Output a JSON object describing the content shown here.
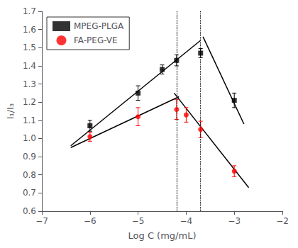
{
  "chart_data": {
    "type": "scatter",
    "x_label": "Log C (mg/mL)",
    "y_label": "I₁/I₃",
    "series": [
      {
        "name": "MPEG-PLGA",
        "type": "scatter",
        "color": "black",
        "marker": "square",
        "x": [
          -6.0,
          -5.0,
          -4.5,
          -4.2,
          -3.7,
          -3.0
        ],
        "values": [
          1.07,
          1.25,
          1.38,
          1.43,
          1.47,
          1.21
        ],
        "yerr": [
          0.03,
          0.04,
          0.025,
          0.03,
          0.025,
          0.04
        ]
      },
      {
        "name": "FA-PEG-VE",
        "type": "scatter",
        "color": "red",
        "marker": "circle",
        "x": [
          -6.0,
          -5.0,
          -4.2,
          -4.0,
          -3.7,
          -3.0
        ],
        "values": [
          1.01,
          1.12,
          1.16,
          1.13,
          1.05,
          0.82
        ],
        "yerr": [
          0.025,
          0.05,
          0.055,
          0.04,
          0.045,
          0.03
        ]
      },
      {
        "type": "line",
        "color": "black",
        "line_style": "solid",
        "x": [
          -6.4,
          -3.7
        ],
        "values": [
          0.96,
          1.54
        ]
      },
      {
        "type": "line",
        "color": "black",
        "line_style": "solid",
        "x": [
          -3.65,
          -2.8
        ],
        "values": [
          1.56,
          1.08
        ]
      },
      {
        "type": "line",
        "color": "black",
        "line_style": "solid",
        "x": [
          -6.4,
          -4.15
        ],
        "values": [
          0.95,
          1.23
        ]
      },
      {
        "type": "line",
        "color": "black",
        "line_style": "solid",
        "x": [
          -4.25,
          -2.7
        ],
        "values": [
          1.25,
          0.73
        ]
      },
      {
        "type": "vline",
        "color": "black",
        "line_style": "dotted",
        "x": -4.2
      },
      {
        "type": "vline",
        "color": "black",
        "line_style": "dotted",
        "x": -3.7
      }
    ],
    "xlim": [
      -7,
      -2
    ],
    "ylim": [
      0.6,
      1.7
    ],
    "xticks": [
      {
        "value": -7,
        "label": "−7"
      },
      {
        "value": -6,
        "label": "−6"
      },
      {
        "value": -5,
        "label": "−5"
      },
      {
        "value": -4,
        "label": "−4"
      },
      {
        "value": -3,
        "label": "−3"
      },
      {
        "value": -2,
        "label": "−2"
      }
    ],
    "yticks": [
      0.6,
      0.7,
      0.8,
      0.9,
      {
        "value": 1.0,
        "label": "1.0"
      },
      1.1,
      1.2,
      1.3,
      1.4,
      1.5,
      1.6,
      1.7
    ],
    "legend": "upper left",
    "grid": false
  }
}
